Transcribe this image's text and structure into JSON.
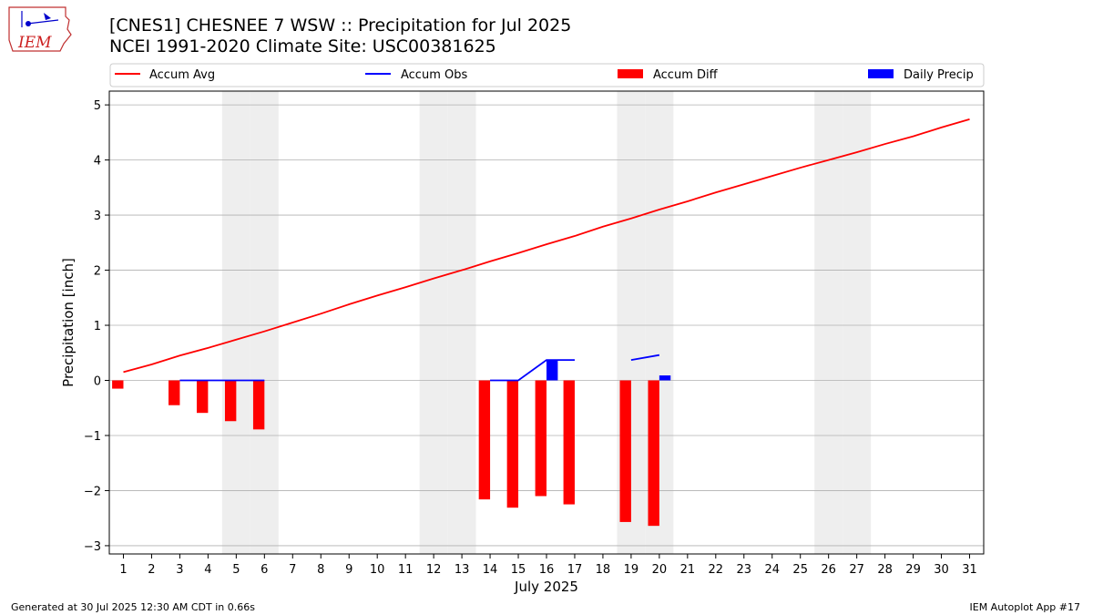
{
  "header": {
    "title_line1": "[CNES1] CHESNEE 7 WSW :: Precipitation for Jul 2025",
    "title_line2": "NCEI 1991-2020 Climate Site: USC00381625",
    "logo_text": "IEM"
  },
  "footer": {
    "generated": "Generated at 30 Jul 2025 12:30 AM CDT in 0.66s",
    "app": "IEM Autoplot App #17"
  },
  "colors": {
    "avg": "#ff0000",
    "obs": "#0000ff",
    "diff": "#ff0000",
    "daily": "#0000ff",
    "weekend": "#eeeeee",
    "grid": "#b0b0b0"
  },
  "chart_data": {
    "type": "bar",
    "title": "[CNES1] CHESNEE 7 WSW :: Precipitation for Jul 2025",
    "xlabel": "July 2025",
    "ylabel": "Precipitation [inch]",
    "ylim": [
      -3.15,
      5.25
    ],
    "yticks": [
      -3,
      -2,
      -1,
      0,
      1,
      2,
      3,
      4,
      5
    ],
    "ytick_labels": [
      "−3",
      "−2",
      "−1",
      "0",
      "1",
      "2",
      "3",
      "4",
      "5"
    ],
    "grid": "horizontal",
    "legend_position": "top",
    "legend": [
      "Accum Avg",
      "Accum Obs",
      "Accum Diff",
      "Daily Precip"
    ],
    "days": [
      1,
      2,
      3,
      4,
      5,
      6,
      7,
      8,
      9,
      10,
      11,
      12,
      13,
      14,
      15,
      16,
      17,
      18,
      19,
      20,
      21,
      22,
      23,
      24,
      25,
      26,
      27,
      28,
      29,
      30,
      31
    ],
    "weekend_days": [
      5,
      6,
      12,
      13,
      19,
      20,
      26,
      27
    ],
    "series": [
      {
        "name": "Accum Avg",
        "kind": "line",
        "values": [
          0.15,
          0.29,
          0.45,
          0.59,
          0.74,
          0.89,
          1.05,
          1.21,
          1.38,
          1.54,
          1.69,
          1.85,
          2.0,
          2.16,
          2.31,
          2.47,
          2.62,
          2.79,
          2.94,
          3.1,
          3.25,
          3.41,
          3.56,
          3.71,
          3.86,
          4.0,
          4.14,
          4.29,
          4.43,
          4.59,
          4.74
        ]
      },
      {
        "name": "Accum Obs",
        "kind": "line",
        "values": [
          null,
          null,
          0.0,
          0.0,
          0.0,
          0.0,
          null,
          null,
          null,
          null,
          null,
          null,
          null,
          0.0,
          0.0,
          0.37,
          0.37,
          null,
          0.37,
          0.46,
          null,
          null,
          null,
          null,
          null,
          null,
          null,
          null,
          null,
          null,
          null
        ]
      },
      {
        "name": "Accum Diff",
        "kind": "bar",
        "values": [
          -0.15,
          null,
          -0.45,
          -0.59,
          -0.74,
          -0.89,
          null,
          null,
          null,
          null,
          null,
          null,
          null,
          -2.16,
          -2.31,
          -2.1,
          -2.25,
          null,
          -2.57,
          -2.64,
          null,
          null,
          null,
          null,
          null,
          null,
          null,
          null,
          null,
          null,
          null
        ]
      },
      {
        "name": "Daily Precip",
        "kind": "bar",
        "values": [
          null,
          null,
          null,
          null,
          null,
          null,
          null,
          null,
          null,
          null,
          null,
          null,
          null,
          null,
          null,
          0.37,
          null,
          null,
          null,
          0.09,
          null,
          null,
          null,
          null,
          null,
          null,
          null,
          null,
          null,
          null,
          null
        ]
      }
    ]
  }
}
